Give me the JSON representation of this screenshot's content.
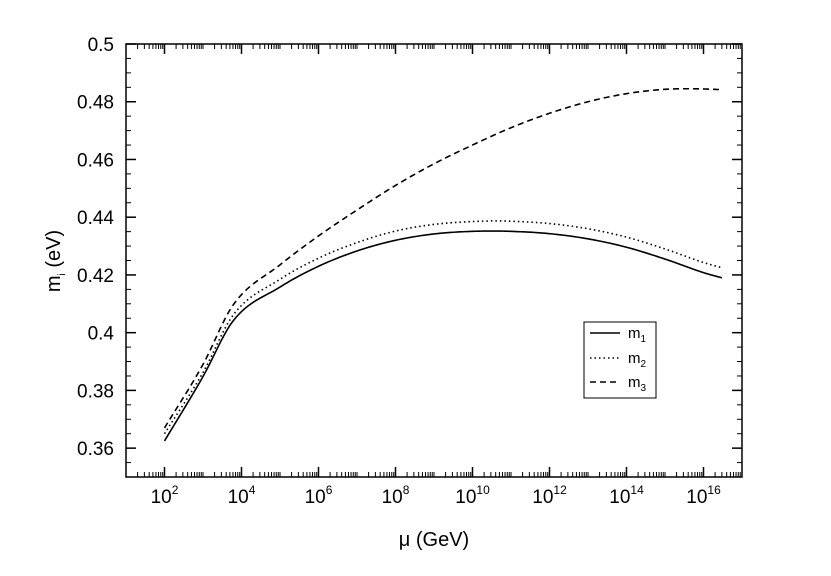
{
  "chart_data": {
    "type": "line",
    "xlabel": {
      "main": "μ (GeV)"
    },
    "ylabel": {
      "main": "m",
      "sub": "i",
      "rest": " (eV)"
    },
    "x_scale": "log10",
    "xlim": [
      10,
      1e+17
    ],
    "ylim": [
      0.35,
      0.5
    ],
    "x_ticks": [
      {
        "base": "10",
        "exp": "2",
        "value": 100
      },
      {
        "base": "10",
        "exp": "4",
        "value": 10000
      },
      {
        "base": "10",
        "exp": "6",
        "value": 1000000
      },
      {
        "base": "10",
        "exp": "8",
        "value": 100000000
      },
      {
        "base": "10",
        "exp": "10",
        "value": 10000000000
      },
      {
        "base": "10",
        "exp": "12",
        "value": 1000000000000
      },
      {
        "base": "10",
        "exp": "14",
        "value": 100000000000000
      },
      {
        "base": "10",
        "exp": "16",
        "value": 10000000000000000
      }
    ],
    "y_ticks": [
      {
        "label": "0.36",
        "value": 0.36
      },
      {
        "label": "0.38",
        "value": 0.38
      },
      {
        "label": "0.4",
        "value": 0.4
      },
      {
        "label": "0.42",
        "value": 0.42
      },
      {
        "label": "0.44",
        "value": 0.44
      },
      {
        "label": "0.46",
        "value": 0.46
      },
      {
        "label": "0.48",
        "value": 0.48
      },
      {
        "label": "0.5",
        "value": 0.5
      }
    ],
    "legend_position": "lower-right",
    "series": [
      {
        "name": {
          "base": "m",
          "sub": "1"
        },
        "style": "solid",
        "x": [
          100,
          1000,
          6000,
          100000,
          1000000,
          10000000,
          100000000,
          1000000000,
          10000000000,
          40000000000,
          100000000000,
          1000000000000,
          10000000000000,
          100000000000000,
          1000000000000000,
          10000000000000000,
          30000000000000000
        ],
        "y": [
          0.3625,
          0.3848,
          0.404,
          0.4158,
          0.423,
          0.4283,
          0.432,
          0.4342,
          0.4351,
          0.4352,
          0.4351,
          0.4343,
          0.4325,
          0.4296,
          0.4255,
          0.4208,
          0.419
        ]
      },
      {
        "name": {
          "base": "m",
          "sub": "2"
        },
        "style": "dotted",
        "x": [
          100,
          1000,
          6000,
          100000,
          1000000,
          10000000,
          100000000,
          1000000000,
          10000000000,
          40000000000,
          100000000000,
          1000000000000,
          10000000000000,
          100000000000000,
          1000000000000000,
          10000000000000000,
          30000000000000000
        ],
        "y": [
          0.365,
          0.3862,
          0.406,
          0.4185,
          0.4258,
          0.4312,
          0.4352,
          0.4375,
          0.4385,
          0.4387,
          0.4386,
          0.4378,
          0.436,
          0.4331,
          0.429,
          0.4243,
          0.4225
        ]
      },
      {
        "name": {
          "base": "m",
          "sub": "3"
        },
        "style": "dashed",
        "x": [
          100,
          1000,
          6000,
          100000,
          1000000,
          10000000,
          100000000,
          1000000000,
          10000000000,
          100000000000,
          1000000000000,
          10000000000000,
          100000000000000,
          1000000000000000,
          5000000000000000,
          30000000000000000
        ],
        "y": [
          0.367,
          0.389,
          0.4095,
          0.4235,
          0.4335,
          0.4425,
          0.451,
          0.4585,
          0.465,
          0.471,
          0.476,
          0.48,
          0.4828,
          0.4843,
          0.4845,
          0.4842
        ]
      }
    ]
  }
}
